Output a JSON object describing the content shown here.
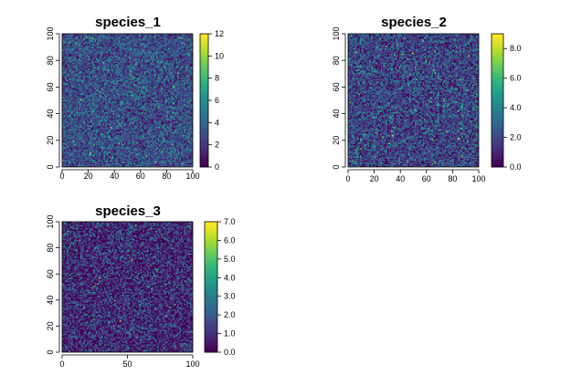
{
  "figure": "species raster maps",
  "palette": [
    "#440154",
    "#482878",
    "#3e4989",
    "#31688e",
    "#26828e",
    "#1f9e89",
    "#35b779",
    "#6ece58",
    "#b5de2b",
    "#fde725"
  ],
  "chart_data": [
    {
      "type": "heatmap",
      "title": "species_1",
      "xlim": [
        0,
        100
      ],
      "ylim": [
        0,
        100
      ],
      "x_ticks": [
        "0",
        "20",
        "40",
        "60",
        "80",
        "100"
      ],
      "y_ticks": [
        "0",
        "20",
        "40",
        "60",
        "80",
        "100"
      ],
      "grid_cells": 100,
      "value_range": [
        0,
        12
      ],
      "colorbar_ticks": [
        "0",
        "2",
        "4",
        "6",
        "8",
        "10",
        "12"
      ],
      "colorbar_tick_values": [
        0,
        2,
        4,
        6,
        8,
        10,
        12
      ],
      "typical_value": 3
    },
    {
      "type": "heatmap",
      "title": "species_2",
      "xlim": [
        0,
        100
      ],
      "ylim": [
        0,
        100
      ],
      "x_ticks": [
        "0",
        "20",
        "40",
        "60",
        "80",
        "100"
      ],
      "y_ticks": [
        "0",
        "20",
        "40",
        "60",
        "80",
        "100"
      ],
      "grid_cells": 100,
      "value_range": [
        0,
        9
      ],
      "colorbar_ticks": [
        "0.0",
        "2.0",
        "4.0",
        "6.0",
        "8.0"
      ],
      "colorbar_tick_values": [
        0,
        2,
        4,
        6,
        8
      ],
      "typical_value": 2
    },
    {
      "type": "heatmap",
      "title": "species_3",
      "xlim": [
        0,
        100
      ],
      "ylim": [
        0,
        100
      ],
      "x_ticks": [
        "0",
        "50",
        "100"
      ],
      "y_ticks": [
        "0",
        "20",
        "40",
        "60",
        "80",
        "100"
      ],
      "grid_cells": 100,
      "value_range": [
        0,
        7
      ],
      "colorbar_ticks": [
        "0.0",
        "1.0",
        "2.0",
        "3.0",
        "4.0",
        "5.0",
        "6.0",
        "7.0"
      ],
      "colorbar_tick_values": [
        0,
        1,
        2,
        3,
        4,
        5,
        6,
        7
      ],
      "typical_value": 1
    }
  ]
}
